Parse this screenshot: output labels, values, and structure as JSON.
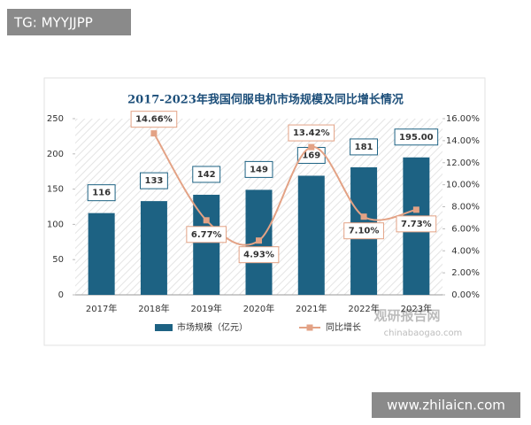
{
  "header": {
    "tag": "TG: MYYJJPP"
  },
  "watermark": {
    "title": "观研报告网",
    "url": "chinabaogao.com"
  },
  "footer": "www.zhilaicn.com",
  "chart_data": {
    "type": "bar",
    "title": "2017-2023年我国伺服电机市场规模及同比增长情况",
    "categories": [
      "2017年",
      "2018年",
      "2019年",
      "2020年",
      "2021年",
      "2022年",
      "2023年"
    ],
    "series": [
      {
        "name": "市场规模（亿元）",
        "color": "#1d6283",
        "values": [
          116,
          133,
          142,
          149,
          169,
          181,
          195
        ],
        "value_labels": [
          "116",
          "133",
          "142",
          "149",
          "169",
          "181",
          "195.00"
        ]
      },
      {
        "name": "同比增长",
        "color": "#e3a285",
        "axis": "y2",
        "values": [
          null,
          14.66,
          6.77,
          4.93,
          13.42,
          7.1,
          7.73
        ],
        "value_labels": [
          null,
          "14.66%",
          "6.77%",
          "4.93%",
          "13.42%",
          "7.10%",
          "7.73%"
        ]
      }
    ],
    "ylim": [
      0,
      250
    ],
    "yticks": [
      0,
      50,
      100,
      150,
      200,
      250
    ],
    "y2lim": [
      0,
      16
    ],
    "y2ticks": [
      {
        "value": 0,
        "label": "0.00%"
      },
      {
        "value": 2,
        "label": "2.00%"
      },
      {
        "value": 4,
        "label": "4.00%"
      },
      {
        "value": 6,
        "label": "6.00%"
      },
      {
        "value": 8,
        "label": "8.00%"
      },
      {
        "value": 10,
        "label": "10.00%"
      },
      {
        "value": 12,
        "label": "12.00%"
      },
      {
        "value": 14,
        "label": "14.00%"
      },
      {
        "value": 16,
        "label": "16.00%"
      }
    ],
    "legend": "bottom"
  }
}
